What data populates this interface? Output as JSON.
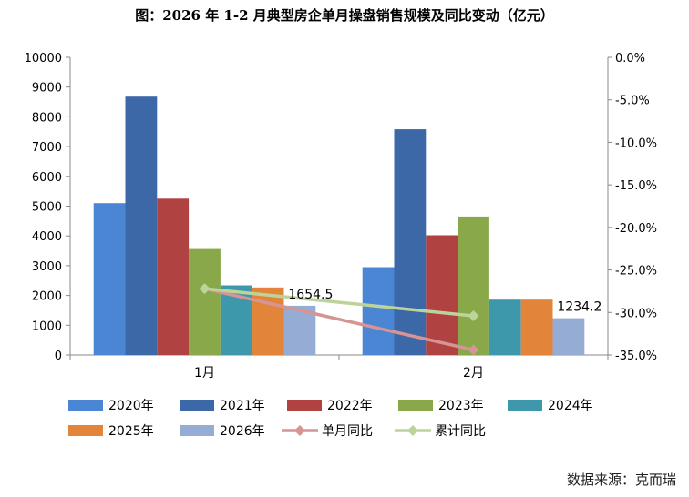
{
  "chart_data": {
    "type": "bar",
    "title": "图：2026 年 1-2 月典型房企单月操盘销售规模及同比变动（亿元）",
    "categories": [
      "1月",
      "2月"
    ],
    "series": [
      {
        "name": "2020年",
        "color": "#4a86d4",
        "values": [
          5100,
          2950
        ]
      },
      {
        "name": "2021年",
        "color": "#3c68a8",
        "values": [
          8680,
          7580
        ]
      },
      {
        "name": "2022年",
        "color": "#b04242",
        "values": [
          5250,
          4020
        ]
      },
      {
        "name": "2023年",
        "color": "#88a84a",
        "values": [
          3590,
          4650
        ]
      },
      {
        "name": "2024年",
        "color": "#3e98ab",
        "values": [
          2340,
          1860
        ]
      },
      {
        "name": "2025年",
        "color": "#e2843a",
        "values": [
          2270,
          1860
        ]
      },
      {
        "name": "2026年",
        "color": "#95add4",
        "values": [
          1654.5,
          1234.2
        ]
      }
    ],
    "lines": [
      {
        "name": "单月同比",
        "color": "#d69494",
        "values": [
          -27.2,
          -34.4
        ]
      },
      {
        "name": "累计同比",
        "color": "#bcd49a",
        "values": [
          -27.2,
          -30.4
        ]
      }
    ],
    "data_labels": [
      "1654.5",
      "1234.2"
    ],
    "ylim": [
      0,
      10000
    ],
    "yticks": [
      "0",
      "1000",
      "2000",
      "3000",
      "4000",
      "5000",
      "6000",
      "7000",
      "8000",
      "9000",
      "10000"
    ],
    "y2lim": [
      -35,
      0
    ],
    "y2ticks": [
      "0.0%",
      "-5.0%",
      "-10.0%",
      "-15.0%",
      "-20.0%",
      "-25.0%",
      "-30.0%",
      "-35.0%"
    ],
    "legend_position": "bottom"
  },
  "source_text": "数据来源：克而瑞"
}
